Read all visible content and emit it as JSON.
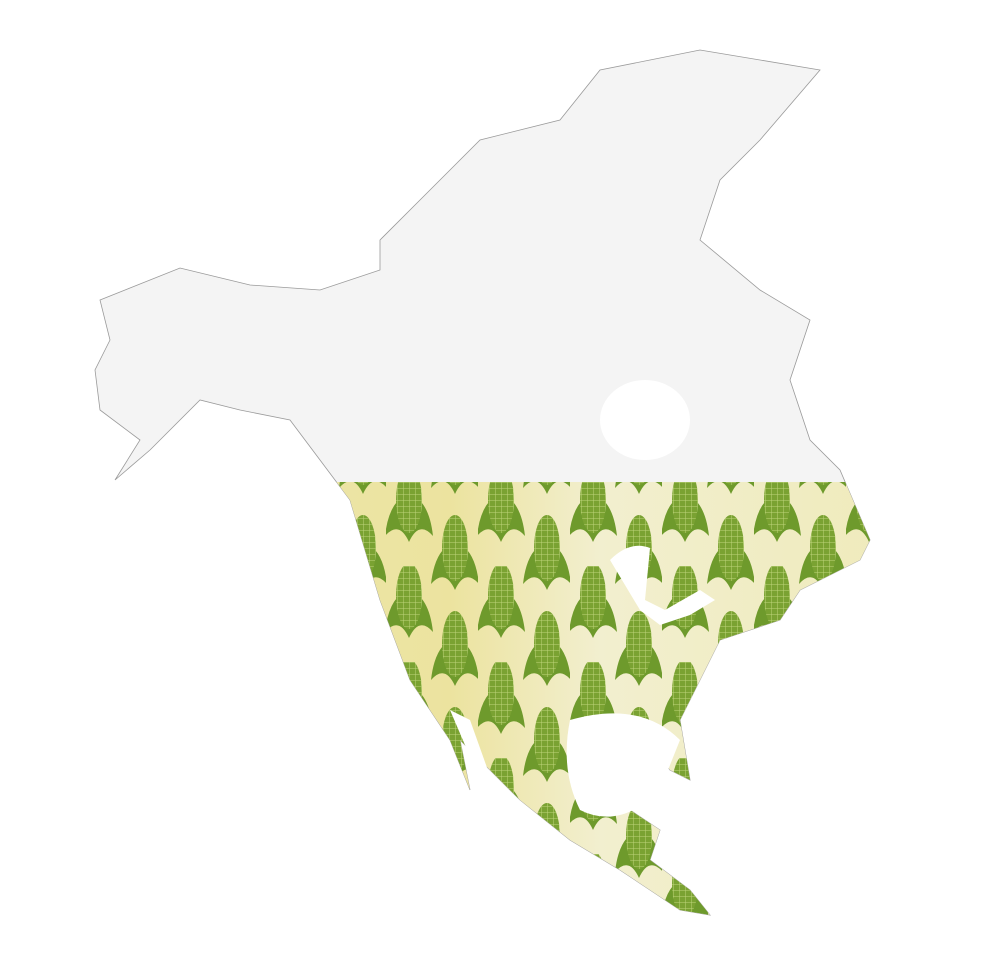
{
  "map": {
    "region": "north-america",
    "north_fill_color": "#f4f4f4",
    "outline_color": "#9a9a9a",
    "pattern": {
      "icon": "corn-cob-icon",
      "background_colors": [
        "#eee9b4",
        "#f2efcf",
        "#ece39f"
      ],
      "cob_colors": [
        "#7aa232",
        "#5b7a2a",
        "#a9cc5a",
        "#8aa14e"
      ],
      "husk_color": "#6e9a2c"
    },
    "water_color": "#ffffff"
  }
}
